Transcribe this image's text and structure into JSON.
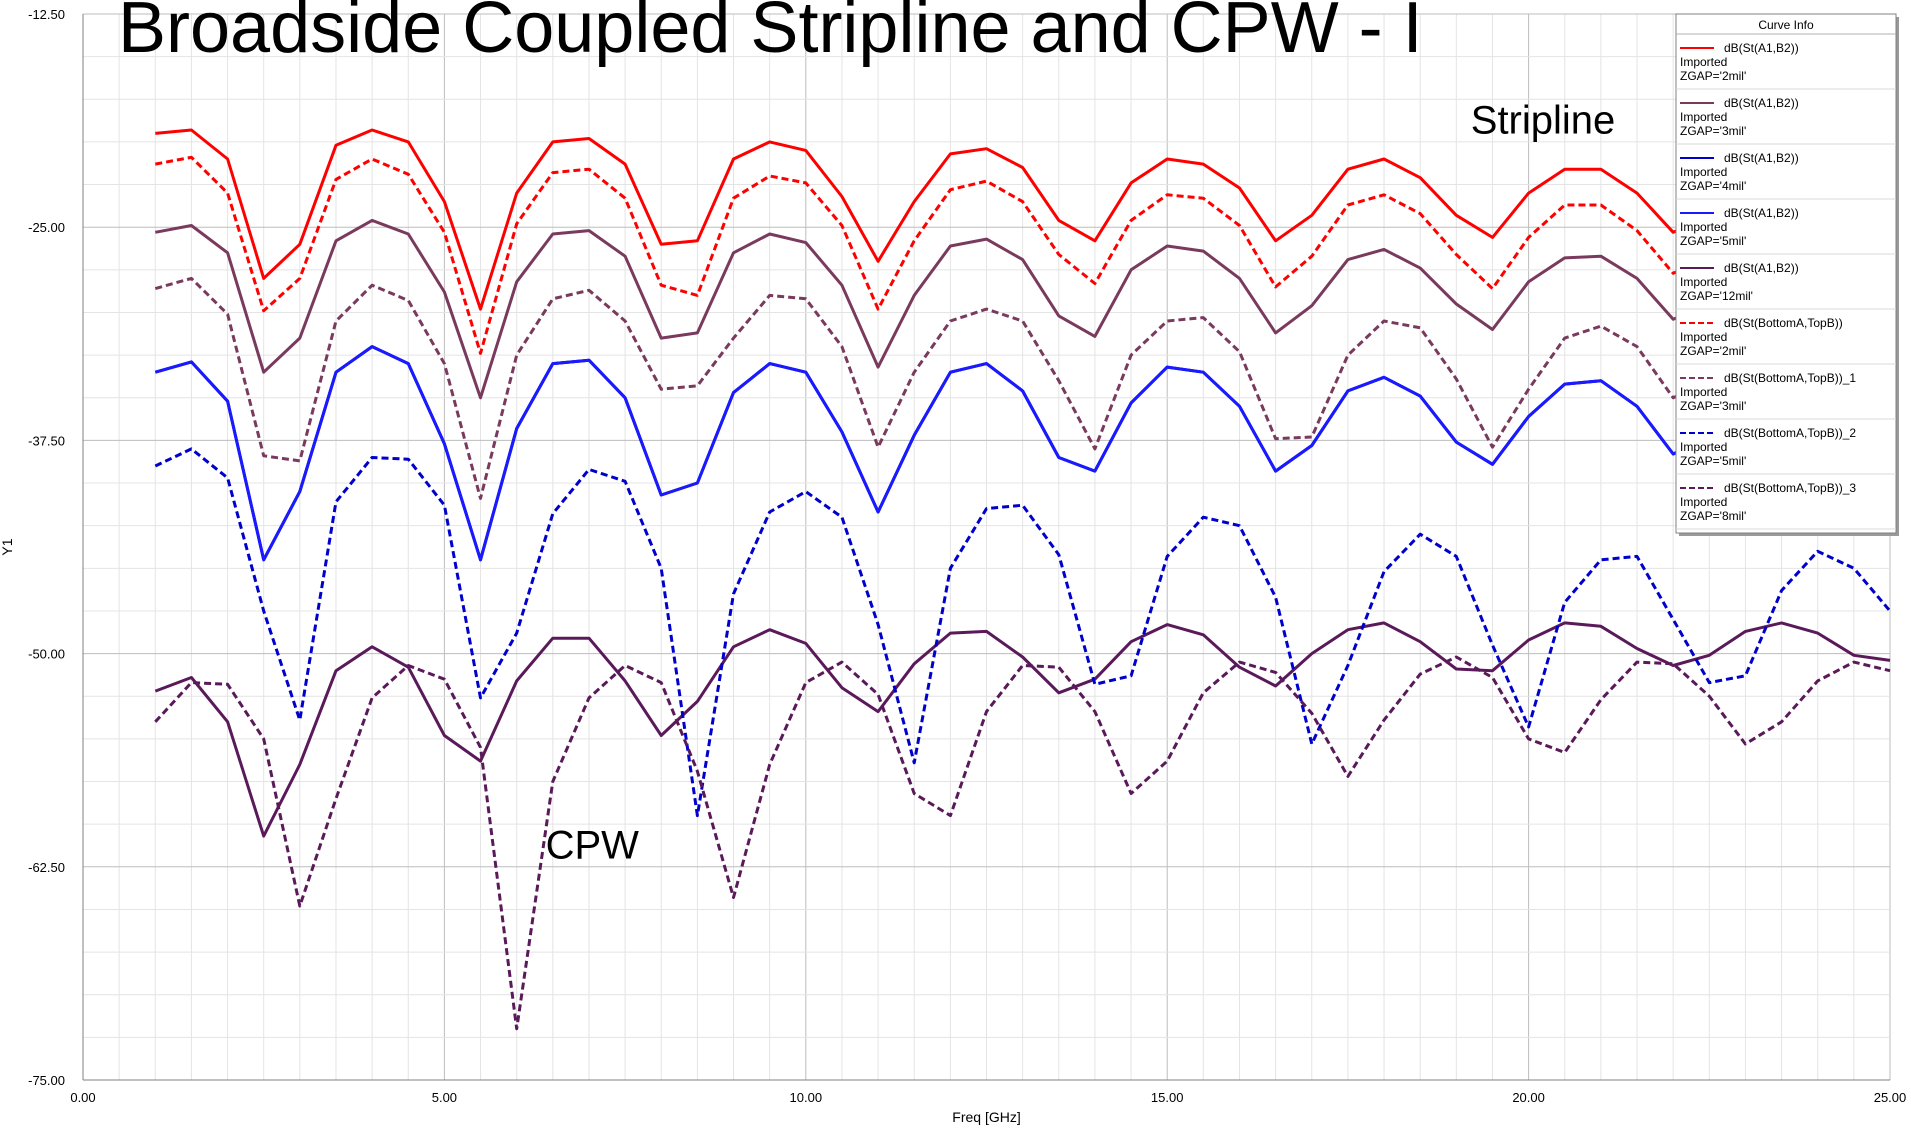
{
  "title": "Broadside Coupled Stripline and CPW - I",
  "annotations": [
    {
      "text": "Stripline",
      "x": 19.2,
      "y": -19.5
    },
    {
      "text": "CPW",
      "x": 6.4,
      "y": -62.0
    }
  ],
  "legend": {
    "header": "Curve Info",
    "position": "top-right"
  },
  "chart_data": {
    "type": "line",
    "xlabel": "Freq [GHz]",
    "ylabel": "Y1",
    "xlim": [
      0,
      25
    ],
    "ylim": [
      -75,
      -12.5
    ],
    "xticks": [
      "0.00",
      "5.00",
      "10.00",
      "15.00",
      "20.00",
      "25.00"
    ],
    "yticks": [
      "-12.50",
      "-25.00",
      "-37.50",
      "-50.00",
      "-62.50",
      "-75.00"
    ],
    "grid": true,
    "x": [
      1,
      1.5,
      2,
      2.5,
      3,
      3.5,
      4,
      4.5,
      5,
      5.5,
      6,
      6.5,
      7,
      7.5,
      8,
      8.5,
      9,
      9.5,
      10,
      10.5,
      11,
      11.5,
      12,
      12.5,
      13,
      13.5,
      14,
      14.5,
      15,
      15.5,
      16,
      16.5,
      17,
      17.5,
      18,
      18.5,
      19,
      19.5,
      20,
      20.5,
      21,
      21.5,
      22,
      22.5,
      23,
      23.5,
      24,
      24.5,
      25
    ],
    "series": [
      {
        "name": "dB(St(A1,B2))",
        "source": "Imported",
        "param": "ZGAP='2mil'",
        "color": "#ff0000",
        "dash": "solid",
        "values": [
          -19.5,
          -19.3,
          -21.0,
          -28.0,
          -26.0,
          -20.2,
          -19.3,
          -20.0,
          -23.5,
          -29.8,
          -23.0,
          -20.0,
          -19.8,
          -21.3,
          -26.0,
          -25.8,
          -21.0,
          -20.0,
          -20.5,
          -23.2,
          -27.0,
          -23.5,
          -20.7,
          -20.4,
          -21.5,
          -24.6,
          -25.8,
          -22.4,
          -21.0,
          -21.3,
          -22.7,
          -25.8,
          -24.3,
          -21.6,
          -21.0,
          -22.1,
          -24.3,
          -25.6,
          -23.0,
          -21.6,
          -21.6,
          -23.0,
          -25.3,
          -24.4,
          -22.1,
          -21.6,
          -22.3,
          -23.6,
          -24.2
        ]
      },
      {
        "name": "dB(St(A1,B2))",
        "source": "Imported",
        "param": "ZGAP='3mil'",
        "color": "#7a3a5e",
        "dash": "solid",
        "values": [
          -25.3,
          -24.9,
          -26.5,
          -33.5,
          -31.5,
          -25.8,
          -24.6,
          -25.4,
          -28.8,
          -35.0,
          -28.2,
          -25.4,
          -25.2,
          -26.7,
          -31.5,
          -31.2,
          -26.5,
          -25.4,
          -25.9,
          -28.4,
          -33.2,
          -29.0,
          -26.1,
          -25.7,
          -26.9,
          -30.2,
          -31.4,
          -27.5,
          -26.1,
          -26.4,
          -28.0,
          -31.2,
          -29.6,
          -26.9,
          -26.3,
          -27.4,
          -29.5,
          -31.0,
          -28.2,
          -26.8,
          -26.7,
          -28.0,
          -30.4,
          -29.5,
          -27.3,
          -26.7,
          -27.3,
          -28.6,
          -29.2
        ]
      },
      {
        "name": "dB(St(A1,B2))",
        "source": "Imported",
        "param": "ZGAP='4mil'",
        "color": "#0000cc",
        "dash": "solid",
        "values": [
          -33.5,
          -32.9,
          -35.2,
          -44.5,
          -40.5,
          -33.5,
          -32.0,
          -33.0,
          -37.7,
          -44.5,
          -36.8,
          -33.0,
          -32.8,
          -35.0,
          -40.7,
          -40.0,
          -34.7,
          -33.0,
          -33.5,
          -37.0,
          -41.7,
          -37.2,
          -33.5,
          -33.0,
          -34.6,
          -38.5,
          -39.3,
          -35.3,
          -33.2,
          -33.5,
          -35.5,
          -39.3,
          -37.8,
          -34.6,
          -33.8,
          -34.9,
          -37.6,
          -38.9,
          -36.1,
          -34.2,
          -34.0,
          -35.5,
          -38.3,
          -37.3,
          -34.9,
          -34.1,
          -34.9,
          -36.5,
          -37.2
        ]
      },
      {
        "name": "dB(St(A1,B2))",
        "source": "Imported",
        "param": "ZGAP='5mil'",
        "color": "#1a1aff",
        "dash": "solid",
        "values": [
          -33.5,
          -32.9,
          -35.2,
          -44.5,
          -40.5,
          -33.5,
          -32.0,
          -33.0,
          -37.7,
          -44.5,
          -36.8,
          -33.0,
          -32.8,
          -35.0,
          -40.7,
          -40.0,
          -34.7,
          -33.0,
          -33.5,
          -37.0,
          -41.7,
          -37.2,
          -33.5,
          -33.0,
          -34.6,
          -38.5,
          -39.3,
          -35.3,
          -33.2,
          -33.5,
          -35.5,
          -39.3,
          -37.8,
          -34.6,
          -33.8,
          -34.9,
          -37.6,
          -38.9,
          -36.1,
          -34.2,
          -34.0,
          -35.5,
          -38.3,
          -37.3,
          -34.9,
          -34.1,
          -34.9,
          -36.5,
          -37.2
        ]
      },
      {
        "name": "dB(St(A1,B2))",
        "source": "Imported",
        "param": "ZGAP='12mil'",
        "color": "#5a1a5a",
        "dash": "solid",
        "values": [
          -52.2,
          -51.4,
          -54.0,
          -60.7,
          -56.5,
          -51.0,
          -49.6,
          -50.8,
          -54.8,
          -56.3,
          -51.6,
          -49.1,
          -49.1,
          -51.6,
          -54.8,
          -52.8,
          -49.6,
          -48.6,
          -49.4,
          -52.0,
          -53.4,
          -50.6,
          -48.8,
          -48.7,
          -50.2,
          -52.3,
          -51.5,
          -49.3,
          -48.3,
          -48.9,
          -50.8,
          -51.9,
          -50.0,
          -48.6,
          -48.2,
          -49.3,
          -50.9,
          -51.0,
          -49.2,
          -48.2,
          -48.4,
          -49.7,
          -50.7,
          -50.1,
          -48.7,
          -48.2,
          -48.8,
          -50.1,
          -50.4
        ]
      },
      {
        "name": "dB(St(BottomA,TopB))",
        "source": "Imported",
        "param": "ZGAP='2mil'",
        "color": "#ff0000",
        "dash": "dashed",
        "values": [
          -21.3,
          -20.9,
          -23.0,
          -29.9,
          -28.0,
          -22.2,
          -21.0,
          -21.9,
          -25.3,
          -32.4,
          -24.8,
          -21.8,
          -21.6,
          -23.3,
          -28.4,
          -29.0,
          -23.3,
          -22.0,
          -22.4,
          -24.9,
          -29.8,
          -25.8,
          -22.8,
          -22.3,
          -23.5,
          -26.6,
          -28.3,
          -24.6,
          -23.1,
          -23.3,
          -24.9,
          -28.5,
          -26.7,
          -23.7,
          -23.1,
          -24.2,
          -26.6,
          -28.6,
          -25.6,
          -23.7,
          -23.7,
          -25.2,
          -27.7,
          -26.8,
          -24.3,
          -23.7,
          -24.3,
          -25.7,
          -26.3
        ]
      },
      {
        "name": "dB(St(BottomA,TopB))_1",
        "source": "Imported",
        "param": "ZGAP='3mil'",
        "color": "#7a3a5e",
        "dash": "dashed",
        "values": [
          -28.6,
          -28.0,
          -30.1,
          -38.4,
          -38.7,
          -30.5,
          -28.4,
          -29.3,
          -33.0,
          -40.9,
          -32.5,
          -29.2,
          -28.7,
          -30.5,
          -34.5,
          -34.3,
          -31.5,
          -29.0,
          -29.2,
          -32.0,
          -37.9,
          -33.5,
          -30.5,
          -29.8,
          -30.5,
          -34.0,
          -38.0,
          -32.5,
          -30.5,
          -30.3,
          -32.3,
          -37.4,
          -37.3,
          -32.5,
          -30.5,
          -30.9,
          -33.9,
          -37.9,
          -34.5,
          -31.5,
          -30.8,
          -32.0,
          -35.0,
          -34.0,
          -31.5,
          -31.0,
          -31.8,
          -33.3,
          -34.0
        ]
      },
      {
        "name": "dB(St(BottomA,TopB))_2",
        "source": "Imported",
        "param": "ZGAP='5mil'",
        "color": "#0000cc",
        "dash": "dashed",
        "values": [
          -39.0,
          -38.0,
          -39.7,
          -47.5,
          -53.9,
          -41.1,
          -38.5,
          -38.6,
          -41.3,
          -52.6,
          -48.8,
          -41.8,
          -39.2,
          -39.9,
          -45.0,
          -59.5,
          -46.5,
          -41.7,
          -40.5,
          -42.0,
          -48.3,
          -56.4,
          -45.0,
          -41.5,
          -41.3,
          -44.2,
          -51.8,
          -51.3,
          -44.3,
          -42.0,
          -42.5,
          -46.7,
          -55.3,
          -50.7,
          -45.2,
          -43.0,
          -44.3,
          -49.5,
          -54.3,
          -47.0,
          -44.5,
          -44.3,
          -48.0,
          -51.7,
          -51.3,
          -46.3,
          -44.0,
          -45.0,
          -47.5
        ]
      },
      {
        "name": "dB(St(BottomA,TopB))_3",
        "source": "Imported",
        "param": "ZGAP='8mil'",
        "color": "#5a1a5a",
        "dash": "dashed",
        "values": [
          -54.0,
          -51.7,
          -51.8,
          -55.0,
          -64.8,
          -58.5,
          -52.6,
          -50.7,
          -51.5,
          -55.5,
          -72.0,
          -57.5,
          -52.6,
          -50.7,
          -51.7,
          -56.9,
          -64.3,
          -56.5,
          -51.7,
          -50.5,
          -52.4,
          -58.2,
          -59.5,
          -53.4,
          -50.7,
          -50.8,
          -53.4,
          -58.2,
          -56.3,
          -52.3,
          -50.5,
          -51.1,
          -53.5,
          -57.2,
          -53.9,
          -51.2,
          -50.2,
          -51.4,
          -55.0,
          -55.8,
          -52.7,
          -50.5,
          -50.6,
          -52.5,
          -55.3,
          -54.0,
          -51.6,
          -50.5,
          -51.0
        ]
      }
    ]
  }
}
